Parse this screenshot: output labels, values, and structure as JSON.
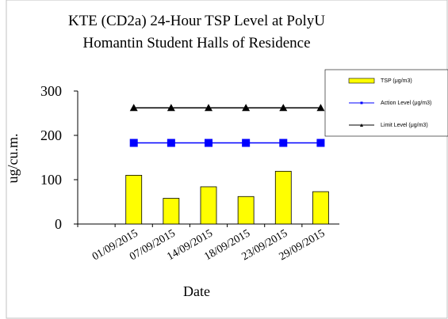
{
  "chart_data": {
    "type": "bar",
    "title": [
      "KTE  (CD2a) 24-Hour TSP Level at PolyU",
      "Homantin Student Halls of Residence"
    ],
    "x_label": "Date",
    "y_label": "ug/cu.m.",
    "categories": [
      null,
      "01/09/2015",
      "07/09/2015",
      "14/09/2015",
      "18/09/2015",
      "23/09/2015",
      "29/09/2015"
    ],
    "series": [
      {
        "name": "TSP (μg/m3)",
        "type": "bar",
        "color": "#ffff00",
        "values": [
          null,
          110,
          58,
          84,
          62,
          119,
          73
        ]
      },
      {
        "name": "Action Level (μg/m3)",
        "type": "line",
        "marker": "square",
        "color": "#0000ff",
        "values": [
          null,
          183,
          183,
          183,
          183,
          183,
          183
        ]
      },
      {
        "name": "Limit Level (μg/m3)",
        "type": "line",
        "marker": "triangle",
        "color": "#000000",
        "values": [
          null,
          262,
          262,
          262,
          262,
          262,
          262
        ]
      }
    ],
    "ylim": [
      0,
      300
    ],
    "yticks": [
      0,
      100,
      200,
      300
    ],
    "legend": "upper right"
  }
}
